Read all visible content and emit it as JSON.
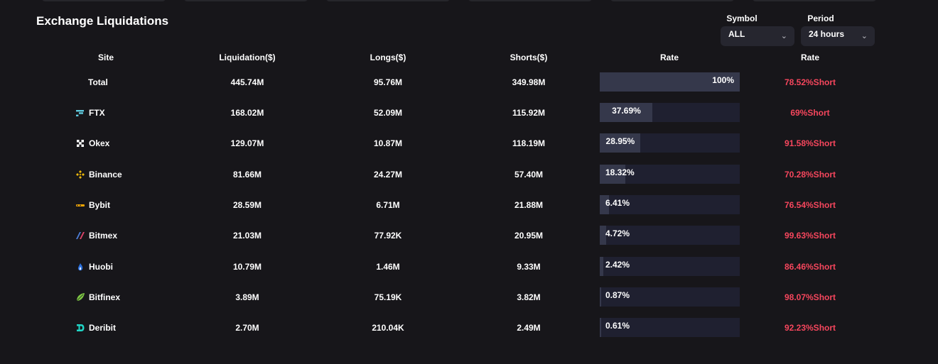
{
  "title": "Exchange Liquidations",
  "filters": {
    "symbol": {
      "label": "Symbol",
      "value": "ALL"
    },
    "period": {
      "label": "Period",
      "value": "24 hours"
    }
  },
  "headers": [
    "Site",
    "Liquidation($)",
    "Longs($)",
    "Shorts($)",
    "Rate",
    "Rate"
  ],
  "colors": {
    "accent_short": "#f6465d",
    "bar_fill": "#35384b",
    "bar_track": "#1f2030"
  },
  "rows": [
    {
      "site": "Total",
      "icon": "",
      "liquidation": "445.74M",
      "longs": "95.76M",
      "shorts": "349.98M",
      "rate_label": "100%",
      "rate_pct": 100,
      "ratio": "78.52%Short"
    },
    {
      "site": "FTX",
      "icon": "ftx-icon",
      "liquidation": "168.02M",
      "longs": "52.09M",
      "shorts": "115.92M",
      "rate_label": "37.69%",
      "rate_pct": 37.69,
      "ratio": "69%Short"
    },
    {
      "site": "Okex",
      "icon": "okex-icon",
      "liquidation": "129.07M",
      "longs": "10.87M",
      "shorts": "118.19M",
      "rate_label": "28.95%",
      "rate_pct": 28.95,
      "ratio": "91.58%Short"
    },
    {
      "site": "Binance",
      "icon": "binance-icon",
      "liquidation": "81.66M",
      "longs": "24.27M",
      "shorts": "57.40M",
      "rate_label": "18.32%",
      "rate_pct": 18.32,
      "ratio": "70.28%Short"
    },
    {
      "site": "Bybit",
      "icon": "bybit-icon",
      "liquidation": "28.59M",
      "longs": "6.71M",
      "shorts": "21.88M",
      "rate_label": "6.41%",
      "rate_pct": 6.41,
      "ratio": "76.54%Short"
    },
    {
      "site": "Bitmex",
      "icon": "bitmex-icon",
      "liquidation": "21.03M",
      "longs": "77.92K",
      "shorts": "20.95M",
      "rate_label": "4.72%",
      "rate_pct": 4.72,
      "ratio": "99.63%Short"
    },
    {
      "site": "Huobi",
      "icon": "huobi-icon",
      "liquidation": "10.79M",
      "longs": "1.46M",
      "shorts": "9.33M",
      "rate_label": "2.42%",
      "rate_pct": 2.42,
      "ratio": "86.46%Short"
    },
    {
      "site": "Bitfinex",
      "icon": "bitfinex-icon",
      "liquidation": "3.89M",
      "longs": "75.19K",
      "shorts": "3.82M",
      "rate_label": "0.87%",
      "rate_pct": 0.87,
      "ratio": "98.07%Short"
    },
    {
      "site": "Deribit",
      "icon": "deribit-icon",
      "liquidation": "2.70M",
      "longs": "210.04K",
      "shorts": "2.49M",
      "rate_label": "0.61%",
      "rate_pct": 0.61,
      "ratio": "92.23%Short"
    }
  ]
}
